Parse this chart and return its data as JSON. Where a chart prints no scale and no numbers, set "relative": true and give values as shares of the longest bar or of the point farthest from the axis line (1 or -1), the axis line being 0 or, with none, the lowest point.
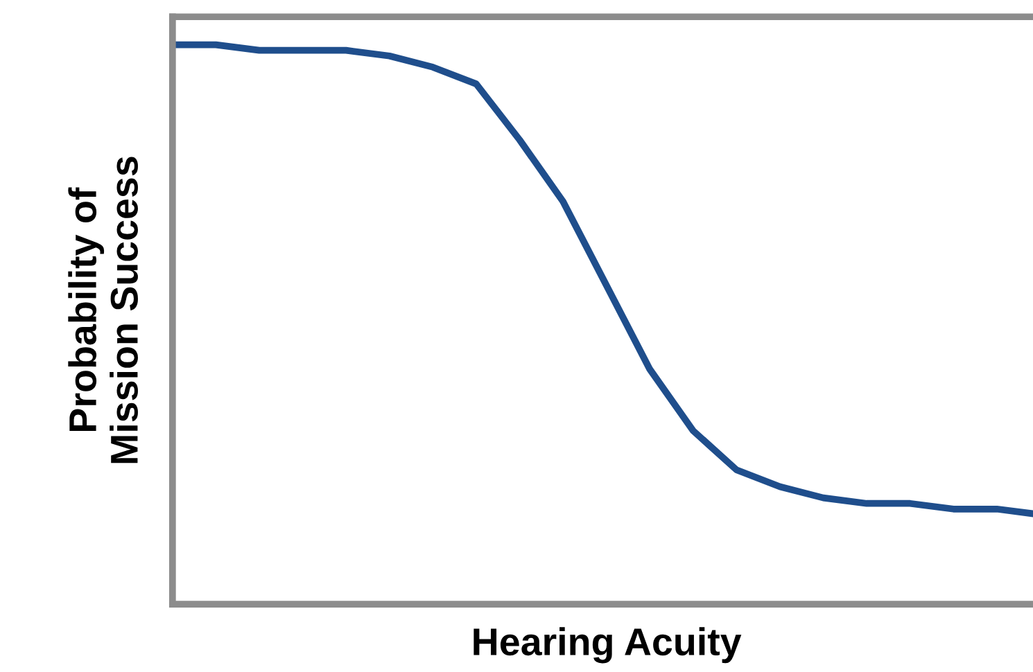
{
  "chart_data": {
    "type": "line",
    "relative": true,
    "xlabel": "Hearing Acuity",
    "ylabel": "Probability of\nMission Success",
    "categories": [
      null,
      null,
      null,
      null,
      null,
      null,
      null,
      null,
      null,
      null,
      null,
      null,
      null,
      null,
      null,
      null,
      null,
      null,
      null,
      null,
      null
    ],
    "series": [
      {
        "color": "#1f4e8c",
        "values": [
          1.0,
          1.0,
          0.99,
          0.99,
          0.99,
          0.98,
          0.96,
          0.93,
          0.83,
          0.72,
          0.57,
          0.42,
          0.31,
          0.24,
          0.21,
          0.19,
          0.18,
          0.18,
          0.17,
          0.17,
          0.16
        ]
      }
    ],
    "marker": "none",
    "line_style": "solid"
  }
}
